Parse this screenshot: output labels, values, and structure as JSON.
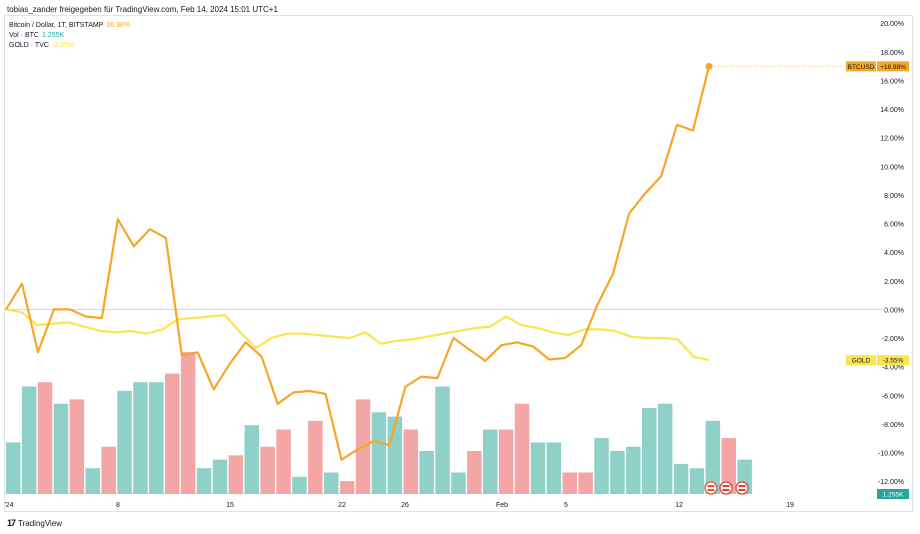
{
  "header": {
    "attribution": "tobias_zander freigegeben für TradingView.com, Feb 14, 2024 15:01 UTC+1"
  },
  "footer": {
    "brand": "TradingView",
    "logo_text": "17"
  },
  "colors": {
    "btc": "#f7a629",
    "gold": "#fbe44f",
    "vol_up": "#8fd1c8",
    "vol_down": "#f4a6a6",
    "zero": "#d1d4dc"
  },
  "legend": {
    "btc_label": "Bitcoin / Dollar, 1T, BITSTAMP",
    "btc_value": "16.98%",
    "vol_label": "Vol · BTC",
    "vol_value": "1.255K",
    "gold_label": "GOLD · TVC",
    "gold_value": "-3.55%"
  },
  "badges": {
    "btc_name": "BTCUSD",
    "btc_value": "+16.98%",
    "gold_name": "GOLD",
    "gold_value": "-3.55%",
    "vol_value": "1.255K"
  },
  "chart_data": {
    "type": "line",
    "y_ticks": [
      "20.00%",
      "18.00%",
      "16.00%",
      "14.00%",
      "12.00%",
      "10.00%",
      "8.00%",
      "6.00%",
      "4.00%",
      "2.00%",
      "0.00%",
      "-2.00%",
      "-4.00%",
      "-6.00%",
      "-8.00%",
      "-10.00%",
      "-12.00%"
    ],
    "ylim": [
      -12.9,
      20.5
    ],
    "x_ticks": [
      "'24",
      "8",
      "15",
      "22",
      "26",
      "Feb",
      "5",
      "12",
      "19"
    ],
    "series": [
      {
        "name": "Bitcoin / Dollar, 1T, BITSTAMP",
        "values": [
          0.0,
          1.8,
          -3.0,
          0.0,
          0.0,
          -0.5,
          -0.6,
          6.3,
          4.4,
          5.6,
          5.0,
          -3.2,
          -3.0,
          -5.6,
          -3.8,
          -2.3,
          -3.3,
          -6.6,
          -5.8,
          -5.7,
          -5.9,
          -10.5,
          -9.8,
          -9.2,
          -9.5,
          -5.4,
          -4.7,
          -4.8,
          -2.0,
          -2.8,
          -3.6,
          -2.5,
          -2.3,
          -2.6,
          -3.5,
          -3.4,
          -2.5,
          0.3,
          2.5,
          6.7,
          8.1,
          9.3,
          12.9,
          12.5,
          16.98
        ]
      },
      {
        "name": "GOLD · TVC",
        "values": [
          0.0,
          -0.2,
          -1.1,
          -1.0,
          -0.9,
          -1.2,
          -1.5,
          -1.6,
          -1.5,
          -1.7,
          -1.4,
          -0.7,
          -0.6,
          -0.5,
          -0.4,
          -1.6,
          -2.7,
          -2.0,
          -1.7,
          -1.7,
          -1.8,
          -1.9,
          -2.0,
          -1.6,
          -2.4,
          -2.2,
          -2.1,
          -1.9,
          -1.7,
          -1.5,
          -1.3,
          -1.2,
          -0.5,
          -1.1,
          -1.3,
          -1.6,
          -1.8,
          -1.4,
          -1.4,
          -1.5,
          -1.9,
          -2.0,
          -2.0,
          -2.1,
          -3.3,
          -3.55
        ]
      }
    ],
    "volume": {
      "name": "Vol · BTC",
      "values": [
        1.2,
        2.5,
        2.6,
        2.1,
        2.2,
        0.6,
        1.1,
        2.4,
        2.6,
        2.6,
        2.8,
        3.3,
        0.6,
        0.8,
        0.9,
        1.6,
        1.1,
        1.5,
        0.4,
        1.7,
        0.5,
        0.3,
        2.2,
        1.9,
        1.8,
        1.5,
        1.0,
        2.5,
        0.5,
        1.0,
        1.5,
        1.5,
        2.1,
        1.2,
        1.2,
        0.5,
        0.5,
        1.3,
        1.0,
        1.1,
        2.0,
        2.1,
        0.7,
        0.6,
        1.7,
        1.3,
        0.8
      ],
      "up": [
        1,
        1,
        0,
        1,
        0,
        1,
        0,
        1,
        1,
        1,
        0,
        0,
        1,
        1,
        0,
        1,
        0,
        0,
        1,
        0,
        1,
        0,
        0,
        1,
        1,
        0,
        1,
        1,
        1,
        0,
        1,
        0,
        0,
        1,
        1,
        0,
        0,
        1,
        1,
        1,
        1,
        1,
        1,
        1,
        1,
        0,
        1
      ]
    }
  }
}
